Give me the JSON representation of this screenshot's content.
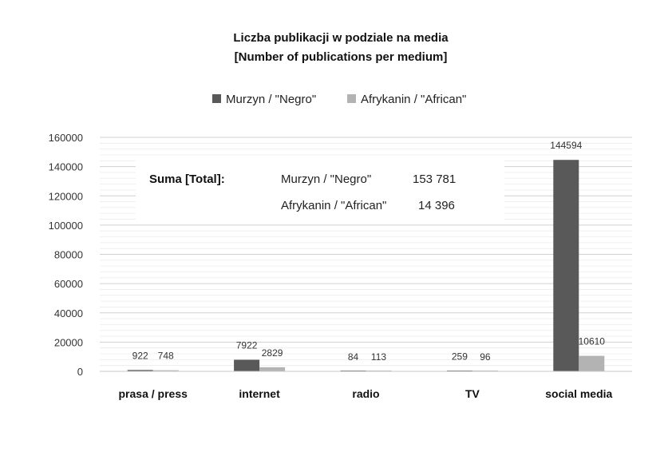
{
  "chart_data": {
    "type": "bar",
    "title": "Liczba publikacji w podziale na media",
    "subtitle": "[Number of publications per medium]",
    "categories": [
      "prasa / press",
      "internet",
      "radio",
      "TV",
      "social media"
    ],
    "series": [
      {
        "name": "Murzyn / \"Negro\"",
        "color": "#595959",
        "values": [
          922,
          7922,
          84,
          259,
          144594
        ]
      },
      {
        "name": "Afrykanin / \"African\"",
        "color": "#b3b3b3",
        "values": [
          748,
          2829,
          113,
          96,
          10610
        ]
      }
    ],
    "ylim": [
      0,
      160000
    ],
    "yticks": [
      "0",
      "20000",
      "40000",
      "60000",
      "80000",
      "100000",
      "120000",
      "140000",
      "160000"
    ],
    "grid": true,
    "legend": "top-center",
    "annotation": {
      "heading": "Suma [Total]:",
      "rows": [
        {
          "label": "Murzyn / \"Negro\"",
          "value": "153 781"
        },
        {
          "label": "Afrykanin / \"African\"",
          "value": "14 396"
        }
      ]
    }
  }
}
